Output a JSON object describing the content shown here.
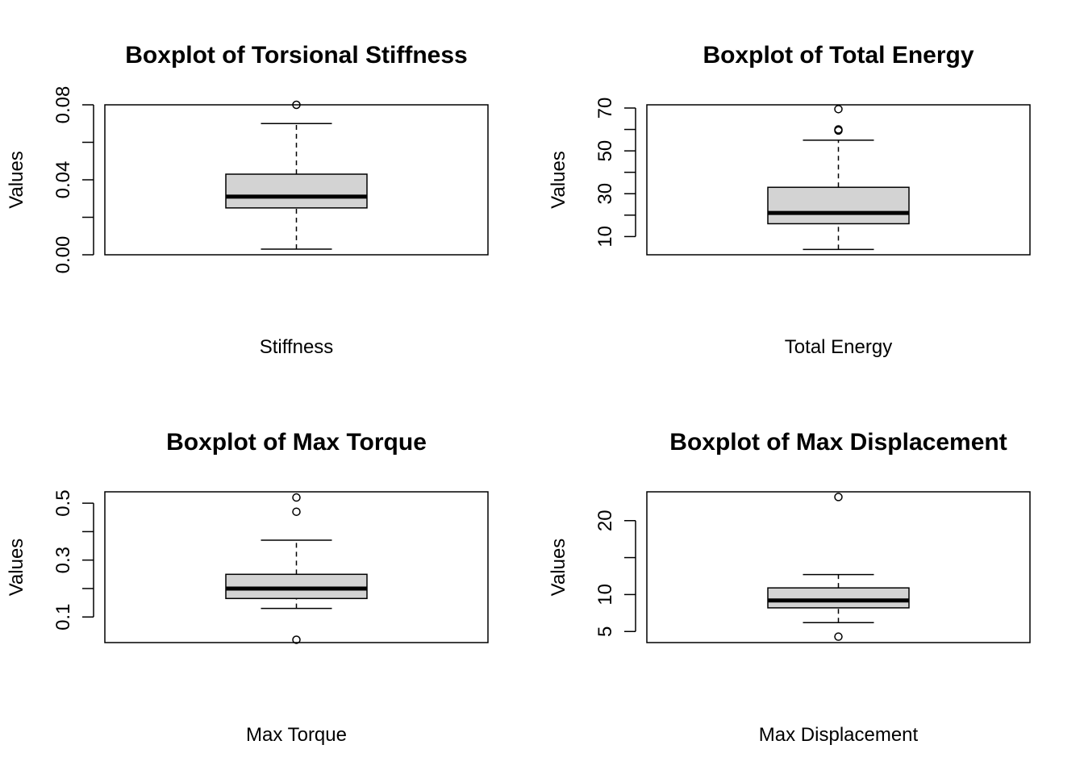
{
  "chart_data": [
    {
      "type": "boxplot",
      "title": "Boxplot of Torsional Stiffness",
      "xlabel": "Stiffness",
      "ylabel": "Values",
      "ylim": [
        0.0,
        0.08
      ],
      "yticks": [
        0.0,
        0.02,
        0.04,
        0.06,
        0.08
      ],
      "ytick_labels": [
        "0.00",
        "",
        "0.04",
        "",
        "0.08"
      ],
      "box": {
        "whisker_low": 0.003,
        "q1": 0.025,
        "median": 0.031,
        "q3": 0.043,
        "whisker_high": 0.07
      },
      "outliers": [
        0.08
      ]
    },
    {
      "type": "boxplot",
      "title": "Boxplot of Total Energy",
      "xlabel": "Total Energy",
      "ylabel": "Values",
      "ylim": [
        1.5,
        71.5
      ],
      "yticks": [
        10,
        20,
        30,
        40,
        50,
        60,
        70
      ],
      "ytick_labels": [
        "10",
        "",
        "30",
        "",
        "50",
        "",
        "70"
      ],
      "box": {
        "whisker_low": 4,
        "q1": 16,
        "median": 21,
        "q3": 33,
        "whisker_high": 55
      },
      "outliers": [
        59.5,
        60,
        69.5
      ]
    },
    {
      "type": "boxplot",
      "title": "Boxplot of Max Torque",
      "xlabel": "Max Torque",
      "ylabel": "Values",
      "ylim": [
        0.01,
        0.54
      ],
      "yticks": [
        0.1,
        0.2,
        0.3,
        0.4,
        0.5
      ],
      "ytick_labels": [
        "0.1",
        "",
        "0.3",
        "",
        "0.5"
      ],
      "box": {
        "whisker_low": 0.13,
        "q1": 0.165,
        "median": 0.2,
        "q3": 0.25,
        "whisker_high": 0.37
      },
      "outliers": [
        0.02,
        0.47,
        0.52
      ]
    },
    {
      "type": "boxplot",
      "title": "Boxplot of Max Displacement",
      "xlabel": "Max Displacement",
      "ylabel": "Values",
      "ylim": [
        3.5,
        23.9
      ],
      "yticks": [
        5,
        10,
        15,
        20
      ],
      "ytick_labels": [
        "5",
        "10",
        "",
        "20"
      ],
      "box": {
        "whisker_low": 6.2,
        "q1": 8.2,
        "median": 9.2,
        "q3": 10.9,
        "whisker_high": 12.7
      },
      "outliers": [
        4.3,
        23.2
      ]
    }
  ]
}
